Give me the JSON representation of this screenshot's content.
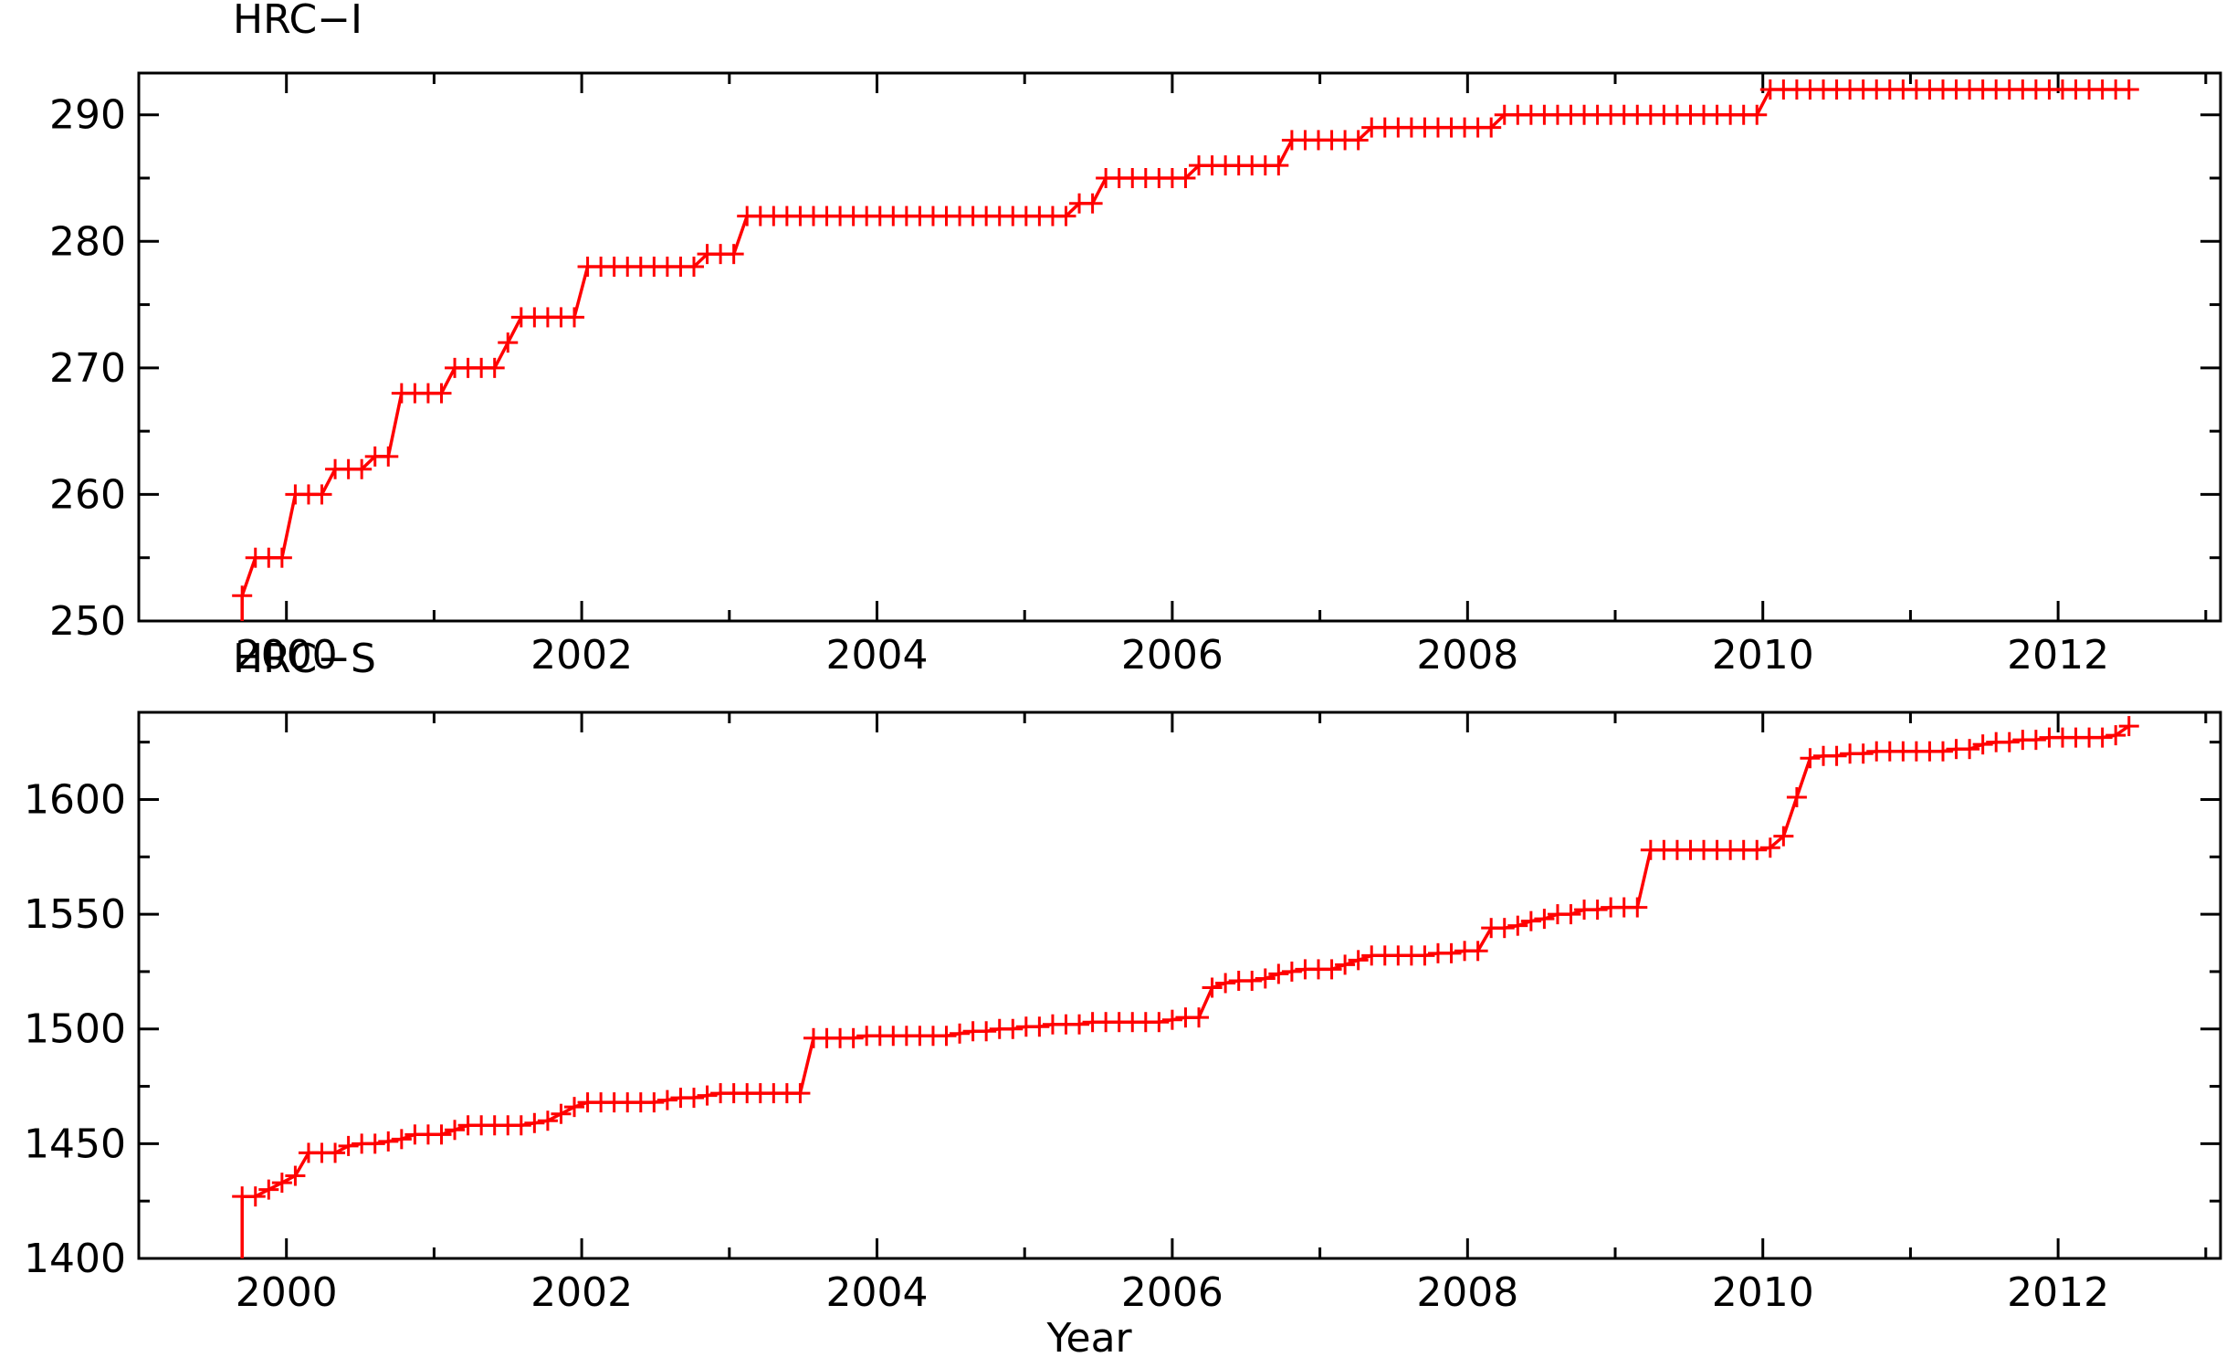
{
  "chart_data": [
    {
      "type": "line",
      "title": "HRC−I",
      "xlabel": "",
      "ylabel": "",
      "xlim": [
        1999.0,
        2013.1
      ],
      "ylim": [
        250,
        293.3
      ],
      "xticks": [
        "2000",
        "2002",
        "2004",
        "2006",
        "2008",
        "2010",
        "2012"
      ],
      "yticks": [
        "250",
        "260",
        "270",
        "280",
        "290"
      ],
      "grid": false,
      "legend": "none",
      "color": "#ff0000",
      "marker": "plus",
      "series": [
        {
          "x": [
            1999.7,
            1999.79,
            1999.88,
            1999.97,
            2000.06,
            2000.15,
            2000.24,
            2000.33,
            2000.42,
            2000.51,
            2000.6,
            2000.69,
            2000.78,
            2000.87,
            2000.96,
            2001.05,
            2001.14,
            2001.23,
            2001.32,
            2001.41,
            2001.5,
            2001.59,
            2001.68,
            2001.77,
            2001.86,
            2001.95,
            2002.04,
            2002.13,
            2002.22,
            2002.31,
            2002.4,
            2002.49,
            2002.58,
            2002.67,
            2002.76,
            2002.85,
            2002.94,
            2003.03,
            2003.12,
            2003.21,
            2003.3,
            2003.39,
            2003.48,
            2003.57,
            2003.66,
            2003.75,
            2003.84,
            2003.93,
            2004.02,
            2004.11,
            2004.2,
            2004.29,
            2004.38,
            2004.47,
            2004.56,
            2004.65,
            2004.74,
            2004.83,
            2004.92,
            2005.01,
            2005.1,
            2005.19,
            2005.28,
            2005.37,
            2005.46,
            2005.55,
            2005.64,
            2005.73,
            2005.82,
            2005.91,
            2006.0,
            2006.09,
            2006.18,
            2006.27,
            2006.36,
            2006.45,
            2006.54,
            2006.63,
            2006.72,
            2006.81,
            2006.9,
            2006.99,
            2007.08,
            2007.17,
            2007.26,
            2007.35,
            2007.44,
            2007.53,
            2007.62,
            2007.71,
            2007.8,
            2007.89,
            2007.98,
            2008.07,
            2008.16,
            2008.25,
            2008.34,
            2008.43,
            2008.52,
            2008.61,
            2008.7,
            2008.79,
            2008.88,
            2008.97,
            2009.06,
            2009.15,
            2009.24,
            2009.33,
            2009.42,
            2009.51,
            2009.6,
            2009.69,
            2009.78,
            2009.87,
            2009.96,
            2010.05,
            2010.14,
            2010.23,
            2010.32,
            2010.41,
            2010.5,
            2010.59,
            2010.68,
            2010.77,
            2010.86,
            2010.95,
            2011.04,
            2011.13,
            2011.22,
            2011.31,
            2011.4,
            2011.49,
            2011.58,
            2011.67,
            2011.76,
            2011.85,
            2011.94,
            2012.03,
            2012.12,
            2012.21,
            2012.3,
            2012.39,
            2012.48
          ],
          "y": [
            252,
            255,
            255,
            255,
            260,
            260,
            260,
            262,
            262,
            262,
            263,
            263,
            268,
            268,
            268,
            268,
            270,
            270,
            270,
            270,
            272,
            274,
            274,
            274,
            274,
            274,
            278,
            278,
            278,
            278,
            278,
            278,
            278,
            278,
            278,
            279,
            279,
            279,
            282,
            282,
            282,
            282,
            282,
            282,
            282,
            282,
            282,
            282,
            282,
            282,
            282,
            282,
            282,
            282,
            282,
            282,
            282,
            282,
            282,
            282,
            282,
            282,
            282,
            283,
            283,
            285,
            285,
            285,
            285,
            285,
            285,
            285,
            286,
            286,
            286,
            286,
            286,
            286,
            286,
            288,
            288,
            288,
            288,
            288,
            288,
            289,
            289,
            289,
            289,
            289,
            289,
            289,
            289,
            289,
            289,
            290,
            290,
            290,
            290,
            290,
            290,
            290,
            290,
            290,
            290,
            290,
            290,
            290,
            290,
            290,
            290,
            290,
            290,
            290,
            290,
            292,
            292,
            292,
            292,
            292,
            292,
            292,
            292,
            292,
            292,
            292,
            292,
            292,
            292,
            292,
            292,
            292,
            292,
            292,
            292,
            292,
            292,
            292,
            292,
            292,
            292,
            292,
            292
          ]
        }
      ]
    },
    {
      "type": "line",
      "title": "HRC−S",
      "xlabel": "Year",
      "ylabel": "",
      "xlim": [
        1999.0,
        2013.1
      ],
      "ylim": [
        1400,
        1638
      ],
      "xticks": [
        "2000",
        "2002",
        "2004",
        "2006",
        "2008",
        "2010",
        "2012"
      ],
      "yticks": [
        "1400",
        "1450",
        "1500",
        "1550",
        "1600"
      ],
      "grid": false,
      "legend": "none",
      "color": "#ff0000",
      "marker": "plus",
      "series": [
        {
          "x": [
            1999.7,
            1999.79,
            1999.88,
            1999.97,
            2000.06,
            2000.15,
            2000.24,
            2000.33,
            2000.42,
            2000.51,
            2000.6,
            2000.69,
            2000.78,
            2000.87,
            2000.96,
            2001.05,
            2001.14,
            2001.23,
            2001.32,
            2001.41,
            2001.5,
            2001.59,
            2001.68,
            2001.77,
            2001.86,
            2001.95,
            2002.04,
            2002.13,
            2002.22,
            2002.31,
            2002.4,
            2002.49,
            2002.58,
            2002.67,
            2002.76,
            2002.85,
            2002.94,
            2003.03,
            2003.12,
            2003.21,
            2003.3,
            2003.39,
            2003.48,
            2003.57,
            2003.66,
            2003.75,
            2003.84,
            2003.93,
            2004.02,
            2004.11,
            2004.2,
            2004.29,
            2004.38,
            2004.47,
            2004.56,
            2004.65,
            2004.74,
            2004.83,
            2004.92,
            2005.01,
            2005.1,
            2005.19,
            2005.28,
            2005.37,
            2005.46,
            2005.55,
            2005.64,
            2005.73,
            2005.82,
            2005.91,
            2006.0,
            2006.09,
            2006.18,
            2006.27,
            2006.36,
            2006.45,
            2006.54,
            2006.63,
            2006.72,
            2006.81,
            2006.9,
            2006.99,
            2007.08,
            2007.17,
            2007.26,
            2007.35,
            2007.44,
            2007.53,
            2007.62,
            2007.71,
            2007.8,
            2007.89,
            2007.98,
            2008.07,
            2008.16,
            2008.25,
            2008.34,
            2008.43,
            2008.52,
            2008.61,
            2008.7,
            2008.79,
            2008.88,
            2008.97,
            2009.06,
            2009.15,
            2009.24,
            2009.33,
            2009.42,
            2009.51,
            2009.6,
            2009.69,
            2009.78,
            2009.87,
            2009.96,
            2010.05,
            2010.14,
            2010.23,
            2010.32,
            2010.41,
            2010.5,
            2010.59,
            2010.68,
            2010.77,
            2010.86,
            2010.95,
            2011.04,
            2011.13,
            2011.22,
            2011.31,
            2011.4,
            2011.49,
            2011.58,
            2011.67,
            2011.76,
            2011.85,
            2011.94,
            2012.03,
            2012.12,
            2012.21,
            2012.3,
            2012.39,
            2012.48
          ],
          "y": [
            1427,
            1427,
            1430,
            1433,
            1436,
            1446,
            1446,
            1446,
            1449,
            1450,
            1450,
            1451,
            1452,
            1454,
            1454,
            1454,
            1456,
            1458,
            1458,
            1458,
            1458,
            1458,
            1459,
            1460,
            1463,
            1466,
            1468,
            1468,
            1468,
            1468,
            1468,
            1468,
            1469,
            1470,
            1470,
            1471,
            1472,
            1472,
            1472,
            1472,
            1472,
            1472,
            1472,
            1496,
            1496,
            1496,
            1496,
            1497,
            1497,
            1497,
            1497,
            1497,
            1497,
            1497,
            1498,
            1499,
            1499,
            1500,
            1500,
            1501,
            1501,
            1502,
            1502,
            1502,
            1503,
            1503,
            1503,
            1503,
            1503,
            1503,
            1504,
            1505,
            1505,
            1518,
            1520,
            1521,
            1521,
            1522,
            1524,
            1525,
            1526,
            1526,
            1526,
            1528,
            1530,
            1532,
            1532,
            1532,
            1532,
            1532,
            1533,
            1533,
            1534,
            1534,
            1544,
            1544,
            1545,
            1547,
            1548,
            1550,
            1550,
            1552,
            1552,
            1553,
            1553,
            1553,
            1578,
            1578,
            1578,
            1578,
            1578,
            1578,
            1578,
            1578,
            1578,
            1579,
            1584,
            1601,
            1618,
            1619,
            1619,
            1620,
            1620,
            1621,
            1621,
            1621,
            1621,
            1621,
            1621,
            1622,
            1622,
            1624,
            1625,
            1625,
            1626,
            1626,
            1627,
            1627,
            1627,
            1627,
            1627,
            1628,
            1632
          ]
        }
      ]
    }
  ]
}
